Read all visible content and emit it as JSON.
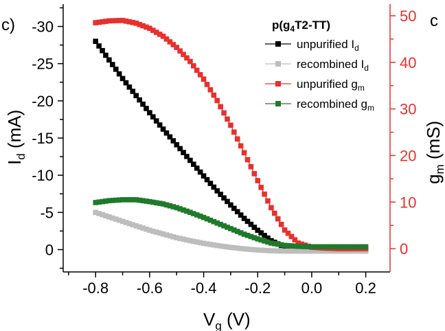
{
  "panel_label": "c)",
  "cut_label": "c",
  "colors": {
    "axis": "#000000",
    "right_axis": "#e8302c",
    "unpurified_id": "#000000",
    "recombined_id": "#bdbdbd",
    "unpurified_gm": "#e8302c",
    "recombined_gm": "#1f7a2a"
  },
  "chart_data": {
    "type": "scatter",
    "xlabel": {
      "main": "V",
      "sub": "g",
      "unit": " (V)"
    },
    "ylabel_left": {
      "main": "I",
      "sub": "d",
      "unit": " (mA)"
    },
    "ylabel_right": {
      "main": "g",
      "sub": "m",
      "unit": " (mS)"
    },
    "xlim": [
      -0.92,
      0.29
    ],
    "ylim_left": [
      3,
      -33
    ],
    "ylim_right": [
      -5,
      52.5
    ],
    "x_ticks": [
      -0.8,
      -0.6,
      -0.4,
      -0.2,
      0.0,
      0.2
    ],
    "x_tick_labels": [
      "-0.8",
      "-0.6",
      "-0.4",
      "-0.2",
      "0.0",
      "0.2"
    ],
    "y_left_ticks": [
      0,
      -5,
      -10,
      -15,
      -20,
      -25,
      -30
    ],
    "y_left_tick_labels": [
      "0",
      "-5",
      "-10",
      "-15",
      "-20",
      "-25",
      "-30"
    ],
    "y_right_ticks": [
      0,
      10,
      20,
      30,
      40,
      50
    ],
    "y_right_tick_labels": [
      "0",
      "10",
      "20",
      "30",
      "40",
      "50"
    ],
    "legend": {
      "title": {
        "main": "p(g",
        "sub": "4",
        "rest": "T2-TT)"
      },
      "placement": "top-right",
      "entries": [
        {
          "main": "unpurified I",
          "sub": "d"
        },
        {
          "main": "recombined I",
          "sub": "d"
        },
        {
          "main": "unpurified g",
          "sub": "m"
        },
        {
          "main": "recombined g",
          "sub": "m"
        }
      ]
    },
    "series": [
      {
        "name": "unpurified Id",
        "axis": "left",
        "color": "#000000",
        "x": [
          -0.8,
          -0.75,
          -0.7,
          -0.65,
          -0.6,
          -0.55,
          -0.5,
          -0.45,
          -0.4,
          -0.35,
          -0.3,
          -0.25,
          -0.2,
          -0.15,
          -0.1,
          -0.05,
          0.0,
          0.05,
          0.1,
          0.15,
          0.2
        ],
        "y": [
          -28.0,
          -25.5,
          -23.0,
          -20.7,
          -18.4,
          -16.2,
          -14.1,
          -12.0,
          -9.9,
          -7.9,
          -6.0,
          -4.2,
          -2.6,
          -1.2,
          -0.35,
          0.0,
          0.05,
          0.05,
          0.05,
          0.05,
          0.05
        ]
      },
      {
        "name": "recombined Id",
        "axis": "left",
        "color": "#bdbdbd",
        "x": [
          -0.8,
          -0.75,
          -0.7,
          -0.65,
          -0.6,
          -0.55,
          -0.5,
          -0.45,
          -0.4,
          -0.35,
          -0.3,
          -0.25,
          -0.2,
          -0.15,
          -0.1,
          -0.05,
          0.0,
          0.05,
          0.1,
          0.15,
          0.2
        ],
        "y": [
          -5.0,
          -4.4,
          -3.8,
          -3.2,
          -2.6,
          -2.1,
          -1.6,
          -1.2,
          -0.85,
          -0.55,
          -0.3,
          -0.1,
          0.05,
          0.15,
          0.2,
          0.2,
          0.2,
          0.2,
          0.2,
          0.2,
          0.2
        ]
      },
      {
        "name": "unpurified gm",
        "axis": "right",
        "color": "#e8302c",
        "x": [
          -0.8,
          -0.75,
          -0.7,
          -0.65,
          -0.6,
          -0.55,
          -0.5,
          -0.45,
          -0.4,
          -0.35,
          -0.3,
          -0.25,
          -0.2,
          -0.15,
          -0.1,
          -0.05,
          0.0,
          0.05,
          0.1,
          0.15,
          0.2
        ],
        "y": [
          48.5,
          48.9,
          49.0,
          48.4,
          47.3,
          45.6,
          43.2,
          40.2,
          36.4,
          31.8,
          26.5,
          20.6,
          14.6,
          8.8,
          4.0,
          1.2,
          0.3,
          0.1,
          0.0,
          0.0,
          0.0
        ]
      },
      {
        "name": "recombined gm",
        "axis": "right",
        "color": "#1f7a2a",
        "x": [
          -0.8,
          -0.75,
          -0.7,
          -0.65,
          -0.6,
          -0.55,
          -0.5,
          -0.45,
          -0.4,
          -0.35,
          -0.3,
          -0.25,
          -0.2,
          -0.15,
          -0.1,
          -0.05,
          0.0,
          0.05,
          0.1,
          0.15,
          0.2
        ],
        "y": [
          9.9,
          10.3,
          10.5,
          10.5,
          10.1,
          9.6,
          8.8,
          7.8,
          6.7,
          5.5,
          4.3,
          3.1,
          2.1,
          1.2,
          0.7,
          0.5,
          0.4,
          0.4,
          0.4,
          0.4,
          0.4
        ]
      }
    ]
  }
}
